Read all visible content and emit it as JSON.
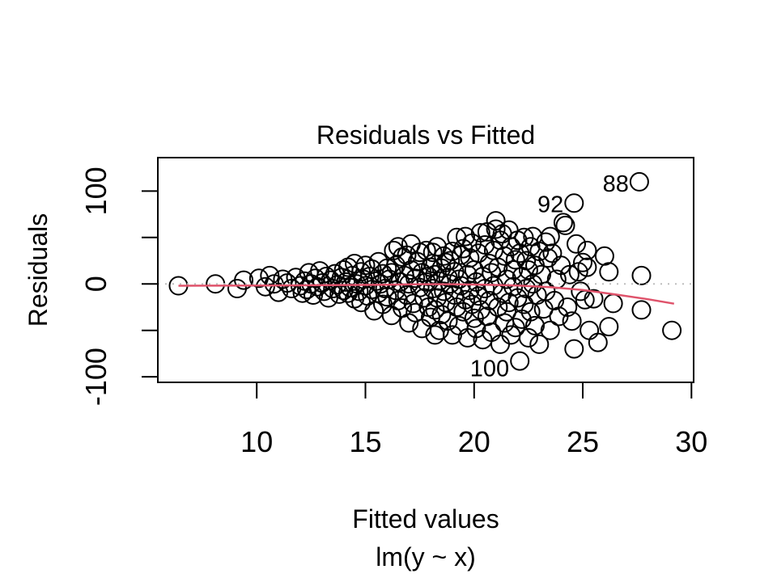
{
  "chart_data": {
    "type": "scatter",
    "title": "Residuals vs Fitted",
    "xlabel": "Fitted values",
    "xlabel_sub": "lm(y ~ x)",
    "ylabel": "Residuals",
    "xlim": [
      5.45,
      30.1
    ],
    "ylim": [
      -106,
      136
    ],
    "grid": "off",
    "x_ticks": [
      10,
      15,
      20,
      25,
      30
    ],
    "y_ticks": [
      {
        "value": -100,
        "label": "-100"
      },
      {
        "value": -50,
        "label": ""
      },
      {
        "value": 0,
        "label": "0"
      },
      {
        "value": 50,
        "label": ""
      },
      {
        "value": 100,
        "label": "100"
      }
    ],
    "zero_line": {
      "y": 0,
      "style": "dotted",
      "color": "#bdbdbd"
    },
    "smoother": {
      "color": "#DF536B",
      "points": [
        [
          6.4,
          -2.0
        ],
        [
          8,
          -1.9
        ],
        [
          10,
          -1.7
        ],
        [
          12,
          -1.5
        ],
        [
          14,
          -1.2
        ],
        [
          16,
          -0.8
        ],
        [
          17.5,
          -0.3
        ],
        [
          19,
          -0.3
        ],
        [
          20.5,
          -0.8
        ],
        [
          22,
          -1.7
        ],
        [
          23.5,
          -3.5
        ],
        [
          25,
          -6.5
        ],
        [
          26.5,
          -11.3
        ],
        [
          28,
          -16.5
        ],
        [
          29.2,
          -21.3
        ]
      ]
    },
    "point_style": {
      "shape": "open-circle",
      "color": "#000000",
      "radius_px": 11
    },
    "labeled_points": [
      {
        "label": "88",
        "x": 27.6,
        "y": 110,
        "label_dy": 12
      },
      {
        "label": "92",
        "x": 24.6,
        "y": 87,
        "label_dy": 11
      },
      {
        "label": "100",
        "x": 22.1,
        "y": -83,
        "label_dy": 19
      }
    ],
    "points": [
      [
        6.4,
        -2
      ],
      [
        8.1,
        0
      ],
      [
        9.1,
        -5
      ],
      [
        9.4,
        4
      ],
      [
        10.1,
        6
      ],
      [
        10.4,
        -3
      ],
      [
        10.6,
        9
      ],
      [
        10.8,
        0
      ],
      [
        11.0,
        -9
      ],
      [
        11.2,
        5
      ],
      [
        11.4,
        1
      ],
      [
        11.6,
        -5
      ],
      [
        11.8,
        7
      ],
      [
        12.0,
        -2
      ],
      [
        12.1,
        -10
      ],
      [
        12.2,
        3
      ],
      [
        12.3,
        -6
      ],
      [
        12.4,
        12
      ],
      [
        12.5,
        0
      ],
      [
        12.6,
        -12
      ],
      [
        12.7,
        6
      ],
      [
        12.8,
        -3
      ],
      [
        12.9,
        14
      ],
      [
        13.0,
        1
      ],
      [
        13.1,
        -8
      ],
      [
        13.2,
        8
      ],
      [
        13.3,
        -15
      ],
      [
        13.4,
        4
      ],
      [
        13.5,
        -5
      ],
      [
        13.6,
        11
      ],
      [
        13.7,
        -1
      ],
      [
        13.8,
        -11
      ],
      [
        13.9,
        7
      ],
      [
        14.0,
        -7
      ],
      [
        14.0,
        15
      ],
      [
        14.1,
        2
      ],
      [
        14.2,
        -10
      ],
      [
        14.2,
        18
      ],
      [
        14.3,
        -4
      ],
      [
        14.4,
        9
      ],
      [
        14.5,
        -16
      ],
      [
        14.5,
        22
      ],
      [
        14.6,
        0
      ],
      [
        14.7,
        -8
      ],
      [
        14.8,
        13
      ],
      [
        14.8,
        -20
      ],
      [
        14.9,
        5
      ],
      [
        15.0,
        -2
      ],
      [
        15.0,
        20
      ],
      [
        15.1,
        -13
      ],
      [
        15.2,
        8
      ],
      [
        15.3,
        -6
      ],
      [
        15.3,
        16
      ],
      [
        15.4,
        -29
      ],
      [
        15.5,
        3
      ],
      [
        15.6,
        -10
      ],
      [
        15.6,
        24
      ],
      [
        15.7,
        0
      ],
      [
        15.8,
        -22
      ],
      [
        15.8,
        11
      ],
      [
        15.9,
        -5
      ],
      [
        16.0,
        17
      ],
      [
        16.0,
        -14
      ],
      [
        16.1,
        5
      ],
      [
        16.2,
        -34
      ],
      [
        16.2,
        12
      ],
      [
        16.3,
        36
      ],
      [
        16.4,
        -7
      ],
      [
        16.4,
        20
      ],
      [
        16.5,
        40
      ],
      [
        16.5,
        -18
      ],
      [
        16.6,
        2
      ],
      [
        16.7,
        29
      ],
      [
        16.7,
        -26
      ],
      [
        16.8,
        9
      ],
      [
        16.9,
        -12
      ],
      [
        16.9,
        31
      ],
      [
        17.0,
        -42
      ],
      [
        17.0,
        0
      ],
      [
        17.1,
        43
      ],
      [
        17.1,
        15
      ],
      [
        17.2,
        -21
      ],
      [
        17.3,
        6
      ],
      [
        17.3,
        -31
      ],
      [
        17.4,
        24
      ],
      [
        17.5,
        -4
      ],
      [
        17.5,
        34
      ],
      [
        17.6,
        -48
      ],
      [
        17.6,
        12
      ],
      [
        17.7,
        -15
      ],
      [
        17.8,
        2
      ],
      [
        17.8,
        36
      ],
      [
        17.9,
        -25
      ],
      [
        17.9,
        8
      ],
      [
        18.0,
        -36
      ],
      [
        18.0,
        18
      ],
      [
        18.1,
        34
      ],
      [
        18.2,
        -55
      ],
      [
        18.1,
        -5
      ],
      [
        18.1,
        22
      ],
      [
        18.2,
        -28
      ],
      [
        18.2,
        10
      ],
      [
        18.3,
        40
      ],
      [
        18.3,
        -15
      ],
      [
        18.4,
        3
      ],
      [
        18.4,
        -50
      ],
      [
        18.5,
        17
      ],
      [
        18.5,
        -33
      ],
      [
        18.6,
        30
      ],
      [
        18.6,
        -8
      ],
      [
        18.7,
        23
      ],
      [
        18.7,
        -20
      ],
      [
        18.8,
        7
      ],
      [
        18.8,
        -40
      ],
      [
        18.9,
        25
      ],
      [
        18.9,
        0
      ],
      [
        19.0,
        -55
      ],
      [
        19.0,
        35
      ],
      [
        19.1,
        13
      ],
      [
        19.1,
        -12
      ],
      [
        19.2,
        50
      ],
      [
        19.2,
        -25
      ],
      [
        19.3,
        5
      ],
      [
        19.3,
        -45
      ],
      [
        19.4,
        31
      ],
      [
        19.4,
        -2
      ],
      [
        19.5,
        38
      ],
      [
        19.5,
        -30
      ],
      [
        19.6,
        51
      ],
      [
        19.6,
        -17
      ],
      [
        19.7,
        10
      ],
      [
        19.7,
        -58
      ],
      [
        19.8,
        28
      ],
      [
        19.8,
        -7
      ],
      [
        19.9,
        44
      ],
      [
        19.9,
        -22
      ],
      [
        20.0,
        15
      ],
      [
        20.0,
        -37
      ],
      [
        20.1,
        2
      ],
      [
        20.1,
        -48
      ],
      [
        20.2,
        33
      ],
      [
        20.2,
        -13
      ],
      [
        20.3,
        55
      ],
      [
        20.3,
        -28
      ],
      [
        20.4,
        8
      ],
      [
        20.4,
        -60
      ],
      [
        20.5,
        42
      ],
      [
        20.5,
        -5
      ],
      [
        20.6,
        56
      ],
      [
        20.6,
        -35
      ],
      [
        20.7,
        22
      ],
      [
        20.7,
        -18
      ],
      [
        20.8,
        12
      ],
      [
        20.8,
        -52
      ],
      [
        20.9,
        36
      ],
      [
        20.9,
        -2
      ],
      [
        21.0,
        68
      ],
      [
        21.0,
        59
      ],
      [
        21.1,
        -25
      ],
      [
        21.1,
        18
      ],
      [
        21.2,
        -65
      ],
      [
        21.2,
        47
      ],
      [
        21.3,
        54
      ],
      [
        21.3,
        -10
      ],
      [
        21.4,
        30
      ],
      [
        21.4,
        -42
      ],
      [
        21.5,
        5
      ],
      [
        21.5,
        -30
      ],
      [
        21.6,
        58
      ],
      [
        21.6,
        -20
      ],
      [
        21.7,
        40
      ],
      [
        21.7,
        -55
      ],
      [
        21.8,
        15
      ],
      [
        21.8,
        -3
      ],
      [
        21.9,
        26
      ],
      [
        21.9,
        -47
      ],
      [
        22.0,
        47
      ],
      [
        22.0,
        -15
      ],
      [
        22.1,
        -83
      ],
      [
        22.1,
        33
      ],
      [
        22.2,
        -38
      ],
      [
        22.2,
        8
      ],
      [
        22.3,
        50
      ],
      [
        22.3,
        -22
      ],
      [
        22.4,
        -5
      ],
      [
        22.4,
        25
      ],
      [
        22.5,
        -58
      ],
      [
        22.5,
        15
      ],
      [
        22.6,
        40
      ],
      [
        22.6,
        -30
      ],
      [
        22.7,
        51
      ],
      [
        22.7,
        0
      ],
      [
        22.8,
        -45
      ],
      [
        22.8,
        20
      ],
      [
        22.9,
        -12
      ],
      [
        23.0,
        35
      ],
      [
        23.0,
        -65
      ],
      [
        23.1,
        10
      ],
      [
        23.2,
        -27
      ],
      [
        23.3,
        45
      ],
      [
        23.3,
        -8
      ],
      [
        23.4,
        28
      ],
      [
        23.5,
        51
      ],
      [
        23.5,
        -50
      ],
      [
        23.6,
        33
      ],
      [
        23.7,
        -18
      ],
      [
        23.8,
        5
      ],
      [
        23.9,
        -35
      ],
      [
        24.0,
        20
      ],
      [
        24.1,
        66
      ],
      [
        24.2,
        63
      ],
      [
        24.3,
        -25
      ],
      [
        24.4,
        10
      ],
      [
        24.5,
        -40
      ],
      [
        24.6,
        87
      ],
      [
        24.6,
        -70
      ],
      [
        24.7,
        43
      ],
      [
        24.8,
        13
      ],
      [
        24.9,
        -8
      ],
      [
        25.0,
        23
      ],
      [
        25.1,
        -17
      ],
      [
        25.2,
        36
      ],
      [
        25.2,
        18
      ],
      [
        25.3,
        -50
      ],
      [
        25.5,
        -16
      ],
      [
        25.7,
        -63
      ],
      [
        26.0,
        30
      ],
      [
        26.2,
        13
      ],
      [
        26.2,
        -46
      ],
      [
        26.4,
        -21
      ],
      [
        27.6,
        110
      ],
      [
        27.7,
        9
      ],
      [
        27.7,
        -28
      ],
      [
        29.1,
        -50
      ]
    ]
  }
}
